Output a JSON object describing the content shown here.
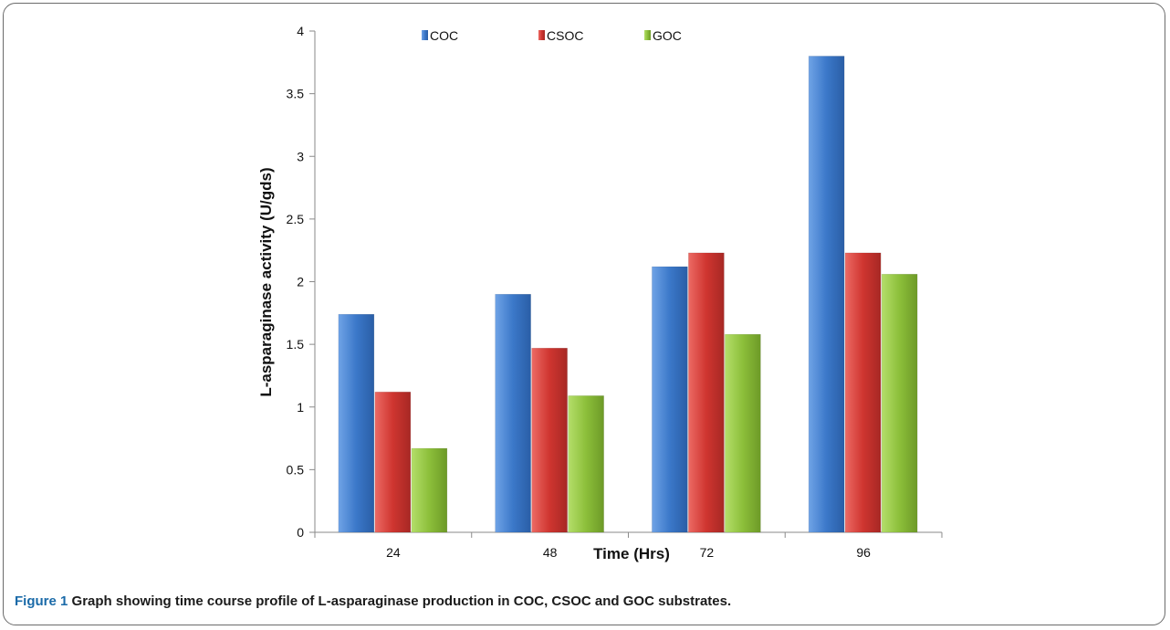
{
  "chart_data": {
    "type": "bar",
    "title": "",
    "xlabel": "Time (Hrs)",
    "ylabel": "L-asparaginase activity (U/gds)",
    "categories": [
      "24",
      "48",
      "72",
      "96"
    ],
    "ylim": [
      0,
      4
    ],
    "yticks": [
      "0",
      "0.5",
      "1",
      "1.5",
      "2",
      "2.5",
      "3",
      "3.5",
      "4"
    ],
    "legend_position": "top",
    "grid": false,
    "series": [
      {
        "name": "COC",
        "color": "#3f7fd0",
        "values": [
          1.74,
          1.9,
          2.12,
          3.8
        ]
      },
      {
        "name": "CSOC",
        "color": "#d23b36",
        "values": [
          1.12,
          1.47,
          2.23,
          2.23
        ]
      },
      {
        "name": "GOC",
        "color": "#8fc23e",
        "values": [
          0.67,
          1.09,
          1.58,
          2.06
        ]
      }
    ]
  },
  "caption": {
    "lead": "Figure 1",
    "text": " Graph showing time course profile of L-asparaginase production in COC, CSOC and GOC substrates."
  }
}
